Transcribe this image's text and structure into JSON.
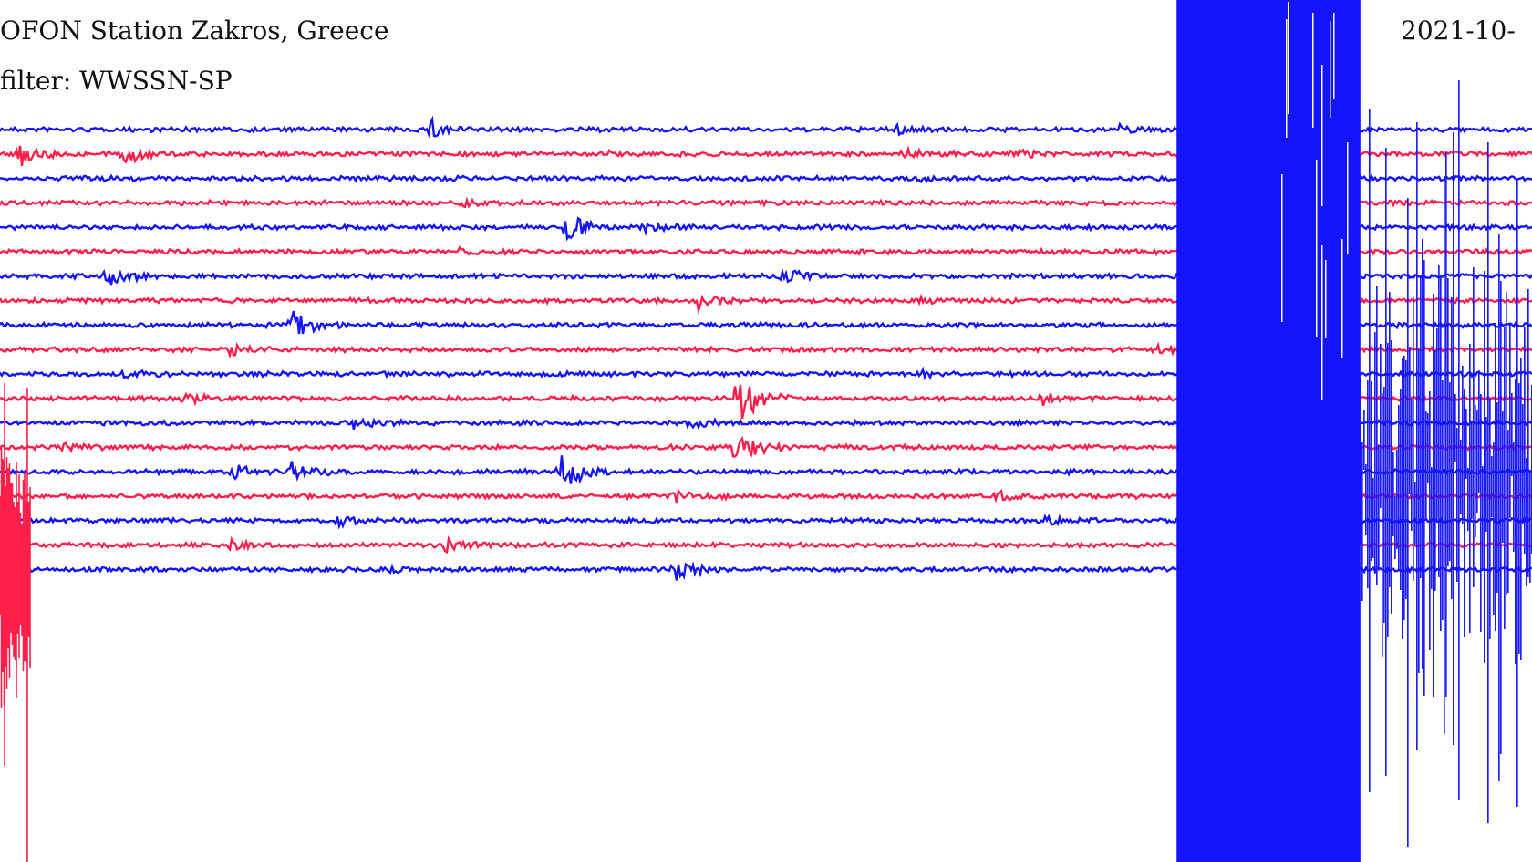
{
  "header": {
    "station": "OFON Station Zakros, Greece",
    "filter": "filter: WWSSN-SP",
    "date": "2021-10-"
  },
  "colors": {
    "blue": "#1414ff",
    "red": "#ff1f4b",
    "background": "#ffffff"
  },
  "traces": [
    {
      "color": "blue",
      "events": [
        [
          0.28,
          12
        ],
        [
          0.585,
          5
        ],
        [
          0.73,
          4
        ],
        [
          0.82,
          5
        ]
      ]
    },
    {
      "color": "red",
      "events": [
        [
          0.012,
          14
        ],
        [
          0.08,
          12
        ],
        [
          0.395,
          4
        ],
        [
          0.59,
          6
        ],
        [
          0.66,
          5
        ]
      ]
    },
    {
      "color": "blue",
      "events": [
        [
          0.6,
          3
        ]
      ]
    },
    {
      "color": "red",
      "events": [
        [
          0.3,
          3
        ]
      ]
    },
    {
      "color": "blue",
      "events": [
        [
          0.37,
          16
        ],
        [
          0.42,
          5
        ]
      ]
    },
    {
      "color": "red",
      "events": [
        [
          0.3,
          3
        ]
      ]
    },
    {
      "color": "blue",
      "events": [
        [
          0.07,
          11
        ],
        [
          0.51,
          9
        ]
      ]
    },
    {
      "color": "red",
      "events": [
        [
          0.455,
          10
        ],
        [
          0.6,
          4
        ]
      ]
    },
    {
      "color": "blue",
      "events": [
        [
          0.19,
          17
        ]
      ]
    },
    {
      "color": "red",
      "events": [
        [
          0.15,
          5
        ],
        [
          0.75,
          6
        ]
      ]
    },
    {
      "color": "blue",
      "events": [
        [
          0.08,
          5
        ],
        [
          0.6,
          4
        ]
      ]
    },
    {
      "color": "red",
      "events": [
        [
          0.12,
          6
        ],
        [
          0.68,
          6
        ],
        [
          0.48,
          40
        ]
      ]
    },
    {
      "color": "blue",
      "events": [
        [
          0.23,
          6
        ],
        [
          0.45,
          5
        ],
        [
          0.79,
          10
        ]
      ]
    },
    {
      "color": "red",
      "events": [
        [
          0.04,
          5
        ],
        [
          0.48,
          22
        ]
      ]
    },
    {
      "color": "blue",
      "events": [
        [
          0.15,
          10
        ],
        [
          0.19,
          12
        ],
        [
          0.365,
          25
        ]
      ]
    },
    {
      "color": "red",
      "events": [
        [
          0.44,
          6
        ],
        [
          0.65,
          5
        ]
      ]
    },
    {
      "color": "blue",
      "events": [
        [
          0.22,
          6
        ],
        [
          0.68,
          5
        ],
        [
          0.81,
          28
        ]
      ]
    },
    {
      "color": "red",
      "events": [
        [
          0.15,
          5
        ],
        [
          0.29,
          8
        ]
      ]
    },
    {
      "color": "blue",
      "events": [
        [
          0.25,
          3
        ],
        [
          0.44,
          12
        ]
      ]
    }
  ],
  "big_event": {
    "start_fraction": 0.768,
    "end_fraction": 0.888
  }
}
